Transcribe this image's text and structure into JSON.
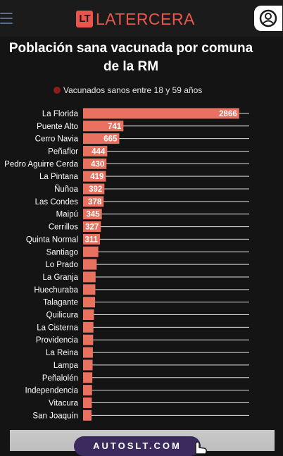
{
  "header": {
    "logo_badge": "LT",
    "logo_text": "LATERCERA"
  },
  "chart_title_line1": "Población sana vacunada por comuna",
  "chart_title_line2": "de la RM",
  "legend_label": "Vacunados sanos entre 18 y 59 años",
  "colors": {
    "bar": "#e8715f",
    "legend": "#8a1c1c",
    "accent": "#e9564d"
  },
  "ad": {
    "text": "AUTOSLT.COM"
  },
  "chart_data": {
    "type": "bar",
    "orientation": "horizontal",
    "series_name": "Vacunados sanos entre 18 y 59 años",
    "categories": [
      "La Florida",
      "Puente Alto",
      "Cerro Navia",
      "Peñaflor",
      "Pedro Aguirre Cerda",
      "La Pintana",
      "Ñuñoa",
      "Las Condes",
      "Maipú",
      "Cerrillos",
      "Quinta Normal",
      "Santiago",
      "Lo Prado",
      "La Granja",
      "Huechuraba",
      "Talagante",
      "Quilicura",
      "La Cisterna",
      "Providencia",
      "La Reina",
      "Lampa",
      "Peñalolén",
      "Independencia",
      "Vitacura",
      "San Joaquín"
    ],
    "values": [
      2866,
      741,
      665,
      444,
      430,
      419,
      392,
      378,
      345,
      327,
      311,
      280,
      250,
      230,
      225,
      220,
      200,
      190,
      185,
      180,
      175,
      170,
      165,
      160,
      155
    ],
    "labels": [
      "2866",
      "741",
      "665",
      "444",
      "430",
      "419",
      "392",
      "378",
      "345",
      "327",
      "311",
      "",
      "",
      "",
      "",
      "",
      "",
      "",
      "",
      "",
      "",
      "",
      "",
      "",
      ""
    ],
    "xlim": [
      0,
      3050
    ],
    "grid": true
  }
}
